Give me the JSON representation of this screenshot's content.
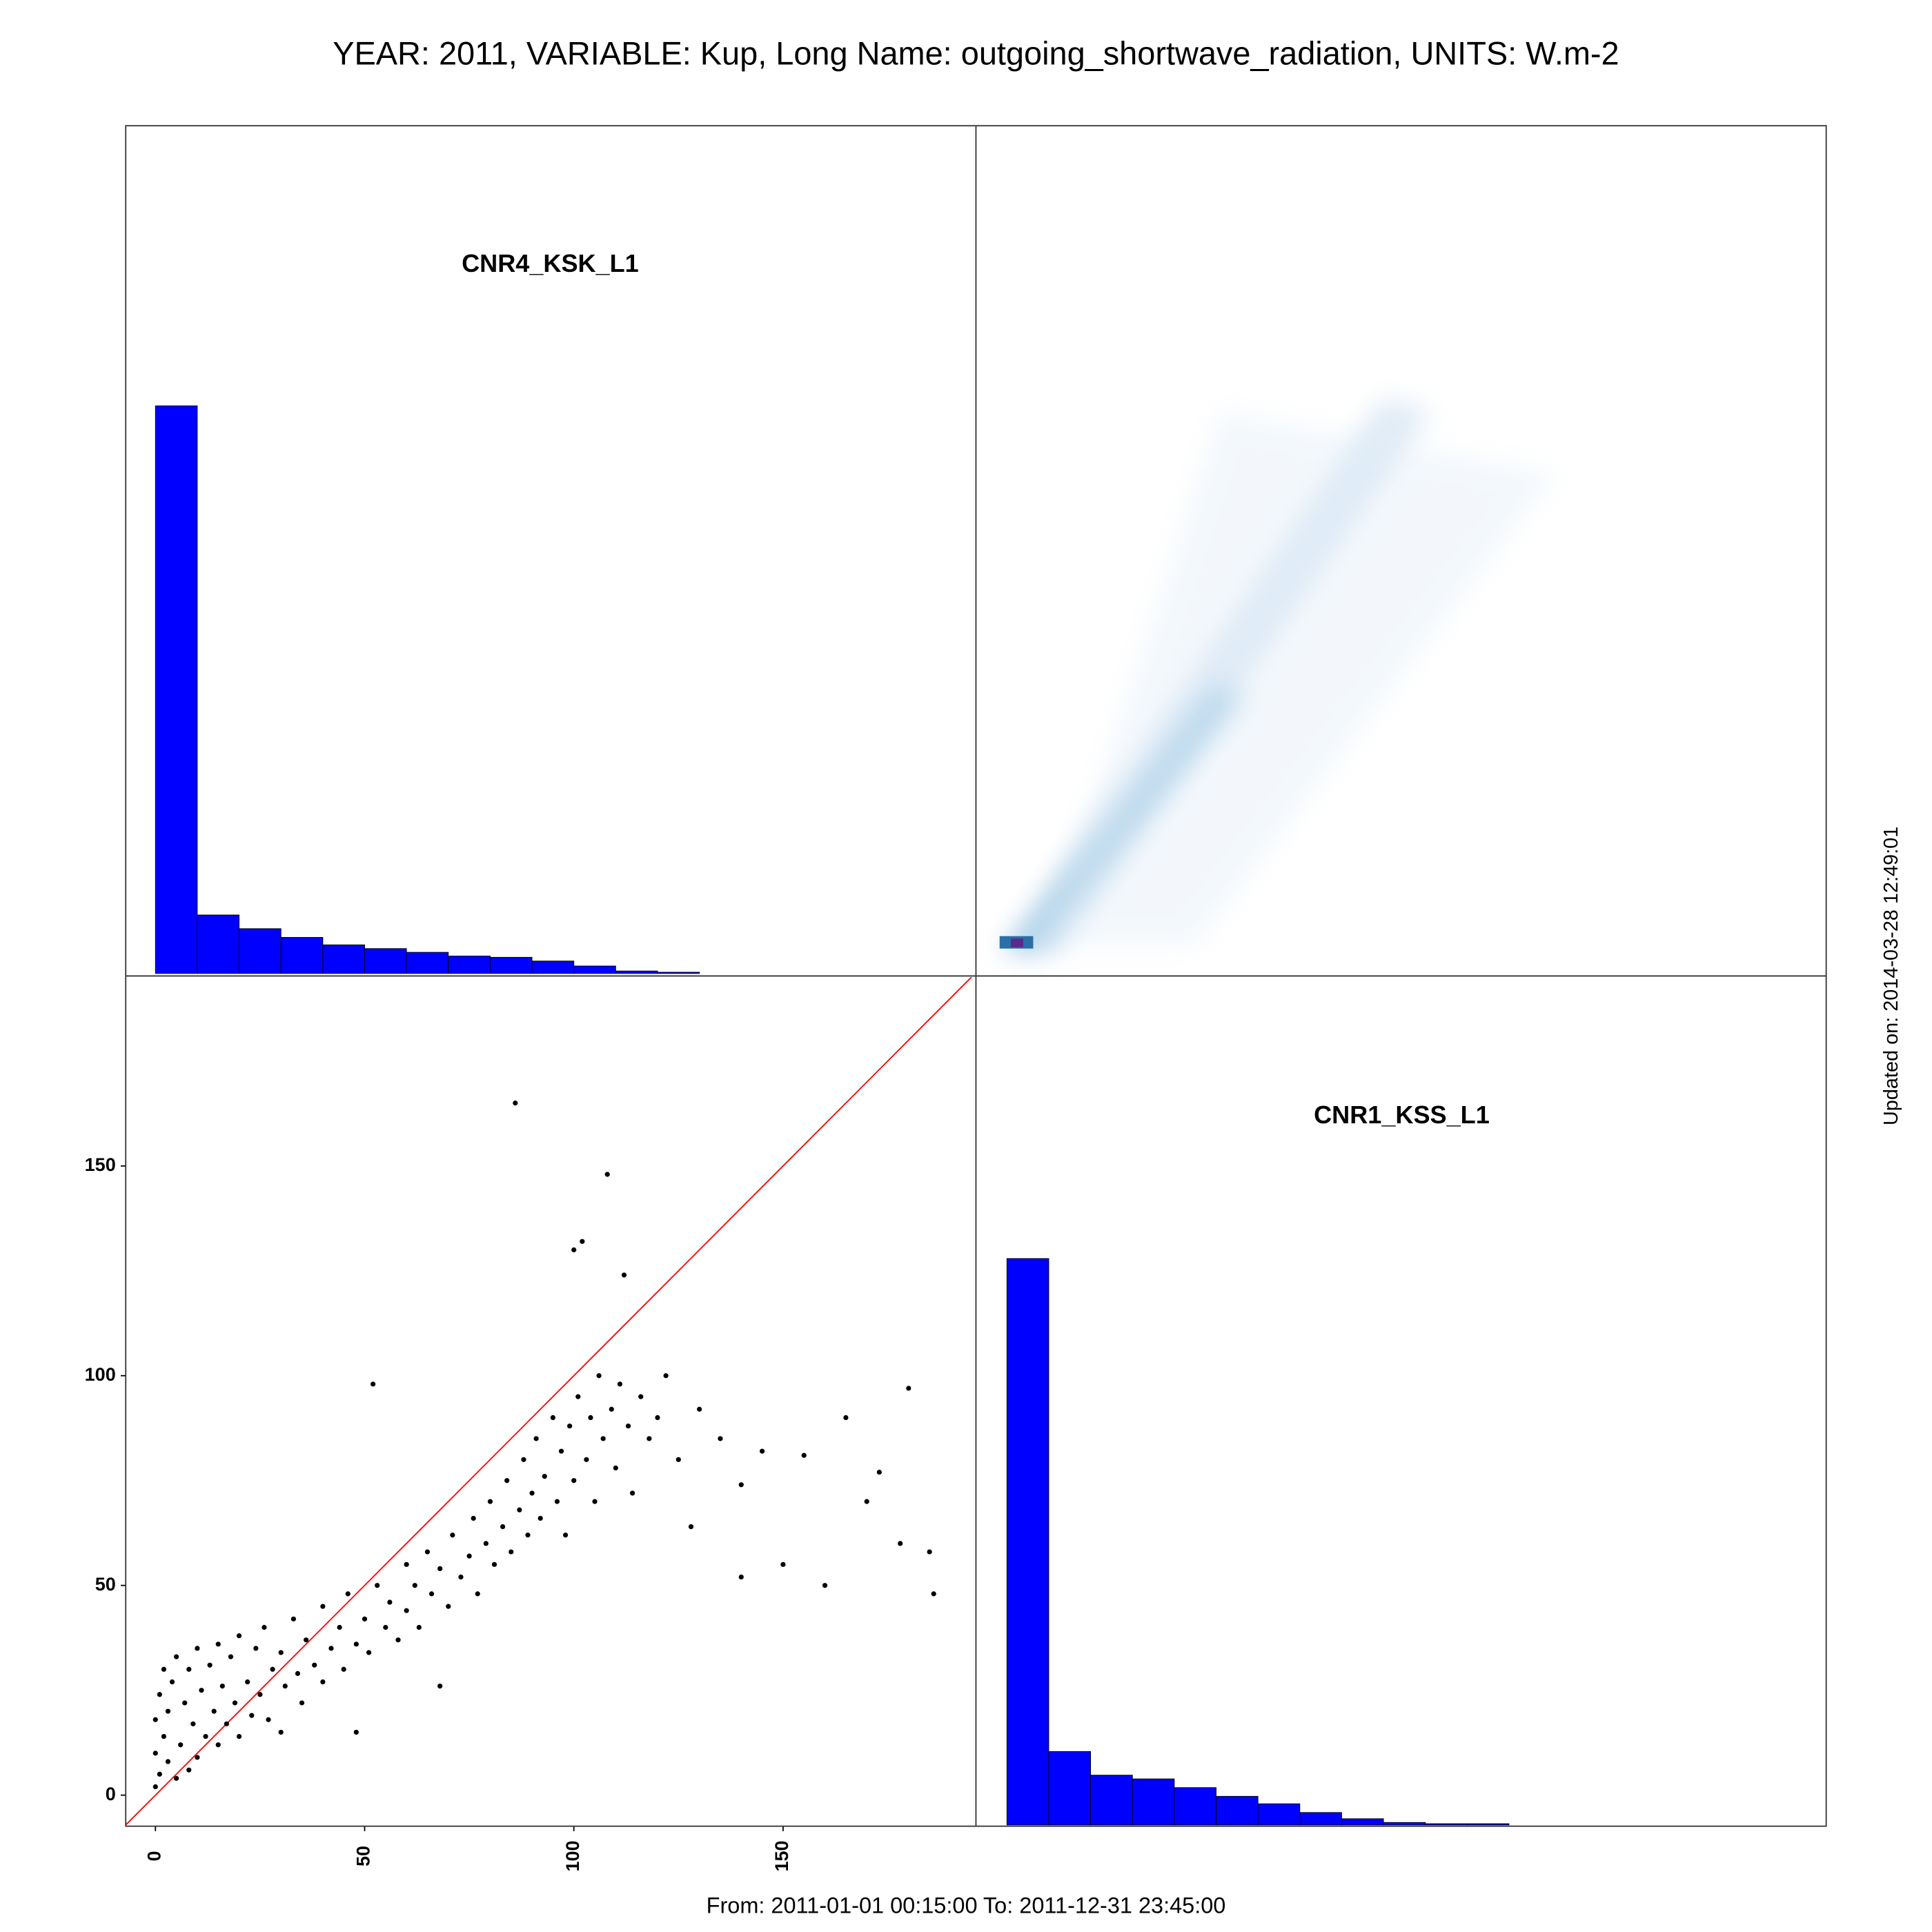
{
  "title": "YEAR: 2011, VARIABLE: Kup, Long Name: outgoing_shortwave_radiation, UNITS: W.m-2",
  "footer": "From: 2011-01-01 00:15:00 To: 2011-12-31 23:45:00",
  "updated": "Updated on: 2014-03-28 12:49:01",
  "chart_data": [
    {
      "type": "histogram",
      "title": "CNR4_KSK_L1",
      "color": "#0000ff",
      "bins": [
        0,
        10,
        20,
        30,
        40,
        50,
        60,
        70,
        80,
        90,
        100,
        110,
        120,
        130,
        140,
        150,
        160,
        170,
        180,
        190
      ],
      "values": [
        456,
        47,
        36,
        29,
        23,
        20,
        17,
        14,
        13,
        10,
        6,
        2,
        1,
        0,
        0,
        0,
        0,
        0,
        0
      ],
      "xlim": [
        -7.1,
        195.8
      ],
      "ylim": [
        0,
        682
      ]
    },
    {
      "type": "scatter",
      "color": "#000000",
      "reference_line_color": "#ff0000",
      "x": [
        0,
        0,
        0,
        1,
        1,
        2,
        2,
        3,
        3,
        4,
        5,
        5,
        6,
        7,
        8,
        8,
        9,
        10,
        10,
        11,
        12,
        13,
        14,
        15,
        15,
        16,
        17,
        18,
        19,
        20,
        20,
        22,
        23,
        24,
        25,
        26,
        27,
        28,
        30,
        30,
        31,
        33,
        34,
        35,
        36,
        38,
        40,
        40,
        42,
        44,
        45,
        46,
        48,
        48,
        50,
        51,
        52,
        53,
        55,
        56,
        58,
        60,
        60,
        62,
        63,
        65,
        66,
        68,
        68,
        70,
        71,
        73,
        75,
        76,
        77,
        79,
        80,
        81,
        83,
        84,
        85,
        86,
        87,
        88,
        89,
        90,
        91,
        92,
        93,
        95,
        96,
        97,
        98,
        99,
        100,
        100,
        101,
        102,
        103,
        104,
        105,
        106,
        107,
        108,
        109,
        110,
        111,
        112,
        113,
        114,
        116,
        118,
        120,
        122,
        125,
        128,
        130,
        135,
        140,
        140,
        145,
        150,
        155,
        160,
        165,
        170,
        173,
        178,
        180,
        185,
        186
      ],
      "y": [
        2,
        10,
        18,
        5,
        24,
        14,
        30,
        8,
        20,
        27,
        4,
        33,
        12,
        22,
        6,
        30,
        17,
        35,
        9,
        25,
        14,
        31,
        20,
        12,
        36,
        26,
        17,
        33,
        22,
        14,
        38,
        27,
        19,
        35,
        24,
        40,
        18,
        30,
        34,
        15,
        26,
        42,
        29,
        22,
        37,
        31,
        45,
        27,
        35,
        40,
        30,
        48,
        36,
        15,
        42,
        34,
        98,
        50,
        40,
        46,
        37,
        55,
        44,
        50,
        40,
        58,
        48,
        26,
        54,
        45,
        62,
        52,
        57,
        66,
        48,
        60,
        70,
        55,
        64,
        75,
        58,
        165,
        68,
        80,
        62,
        72,
        85,
        66,
        76,
        90,
        70,
        82,
        62,
        88,
        75,
        130,
        95,
        132,
        80,
        90,
        70,
        100,
        85,
        148,
        92,
        78,
        98,
        124,
        88,
        72,
        95,
        85,
        90,
        100,
        80,
        64,
        92,
        85,
        74,
        52,
        82,
        55,
        81,
        50,
        90,
        70,
        77,
        60,
        97,
        58,
        48
      ],
      "xlim": [
        -7.1,
        195.8
      ],
      "ylim": [
        -7.4,
        195
      ],
      "xticks": [
        0,
        50,
        100,
        150
      ],
      "yticks": [
        0,
        50,
        100,
        150
      ]
    },
    {
      "type": "histogram",
      "title": "CNR1_KSS_L1",
      "color": "#0000ff",
      "bins": [
        0,
        10,
        20,
        30,
        40,
        50,
        60,
        70,
        80,
        90,
        100,
        110,
        120,
        130,
        140,
        150,
        160,
        170,
        180
      ],
      "values": [
        455,
        59,
        40,
        37,
        30,
        23,
        17,
        10,
        5,
        2,
        1,
        1,
        0,
        0,
        0,
        0,
        0,
        0
      ],
      "xlim": [
        -7.1,
        195.8
      ],
      "ylim": [
        0,
        682
      ]
    }
  ]
}
